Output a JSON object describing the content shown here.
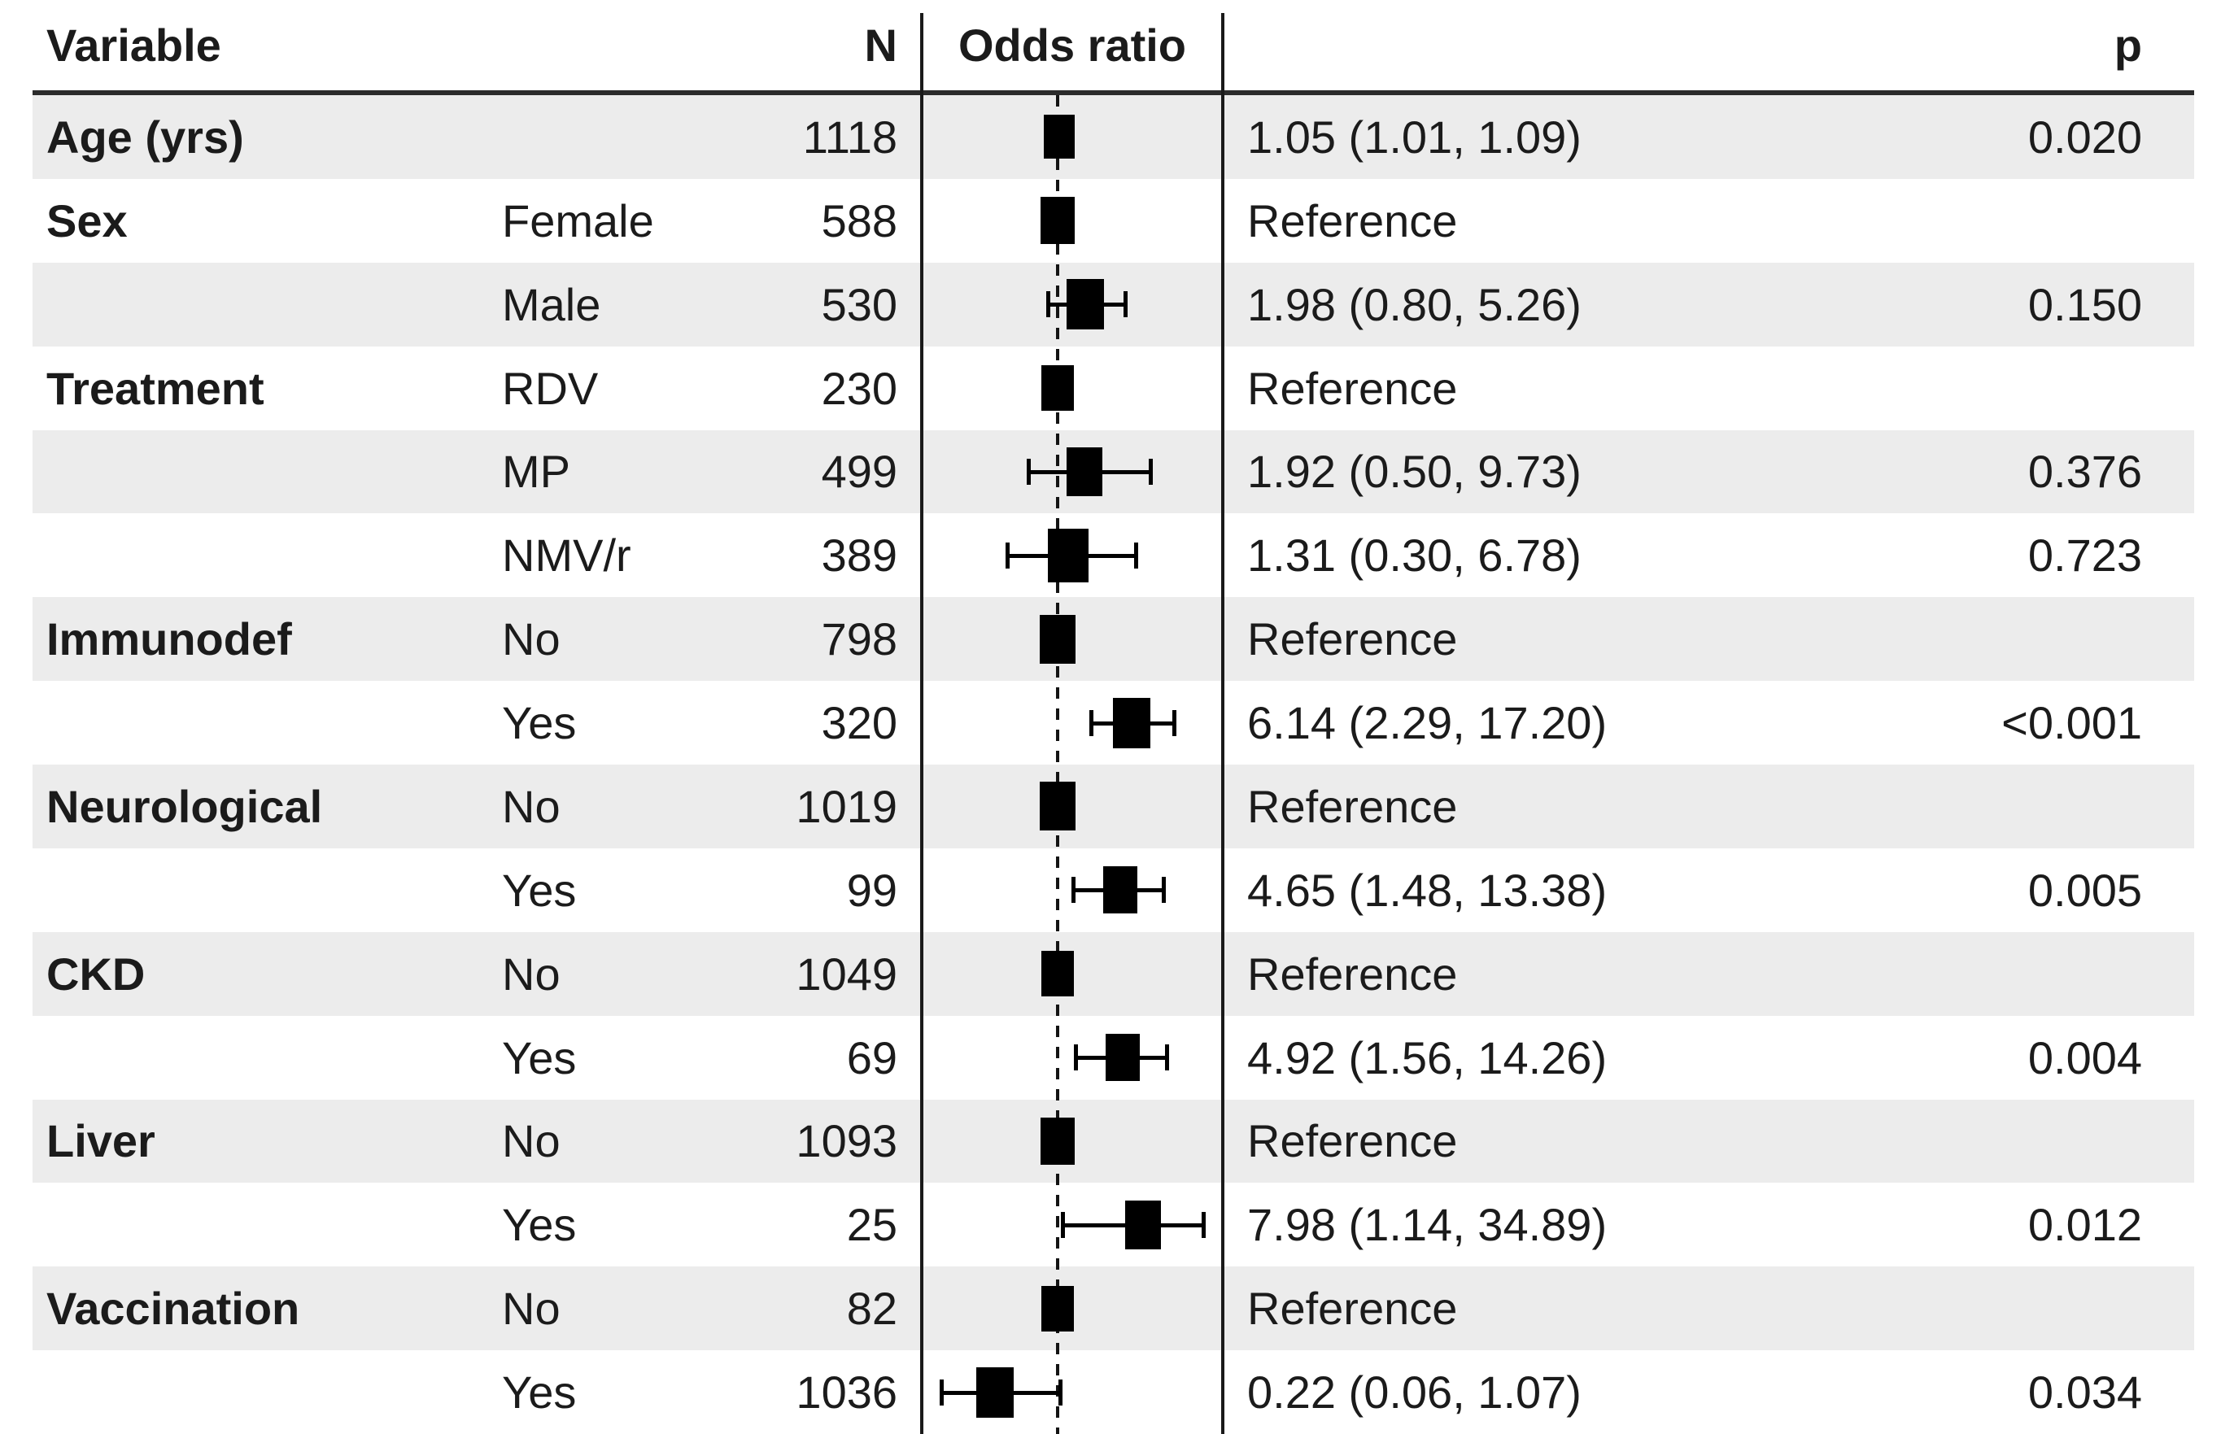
{
  "header": {
    "variable": "Variable",
    "n": "N",
    "odds_ratio": "Odds ratio",
    "p": "p"
  },
  "colors": {
    "stripe": "#ececec",
    "marker": "#000000",
    "text": "#1b1b1b",
    "divider_line": "#1a1a1a",
    "header_rule": "#2b2b2b"
  },
  "chart_data": {
    "type": "scatter",
    "subtype": "forest-plot",
    "title": "",
    "xlabel": "Odds ratio",
    "x_scale": "log",
    "x_range": [
      0.037,
      55.7
    ],
    "reference_value": 1,
    "reference_line_style": "dashed",
    "grid": false,
    "rows": [
      {
        "variable": "Age (yrs)",
        "subgroup": "",
        "n": 1118,
        "or": 1.05,
        "ci": [
          1.01,
          1.09
        ],
        "estimate": "1.05 (1.01, 1.09)",
        "p": "0.020",
        "box": 54
      },
      {
        "variable": "Sex",
        "subgroup": "Female",
        "n": 588,
        "or": 1.0,
        "ci": null,
        "estimate": "Reference",
        "p": "",
        "box": 58
      },
      {
        "variable": "",
        "subgroup": "Male",
        "n": 530,
        "or": 1.98,
        "ci": [
          0.8,
          5.26
        ],
        "estimate": "1.98 (0.80, 5.26)",
        "p": "0.150",
        "box": 62
      },
      {
        "variable": "Treatment",
        "subgroup": "RDV",
        "n": 230,
        "or": 1.0,
        "ci": null,
        "estimate": "Reference",
        "p": "",
        "box": 56
      },
      {
        "variable": "",
        "subgroup": "MP",
        "n": 499,
        "or": 1.92,
        "ci": [
          0.5,
          9.73
        ],
        "estimate": "1.92 (0.50, 9.73)",
        "p": "0.376",
        "box": 60
      },
      {
        "variable": "",
        "subgroup": "NMV/r",
        "n": 389,
        "or": 1.31,
        "ci": [
          0.3,
          6.78
        ],
        "estimate": "1.31 (0.30, 6.78)",
        "p": "0.723",
        "box": 66
      },
      {
        "variable": "Immunodef",
        "subgroup": "No",
        "n": 798,
        "or": 1.0,
        "ci": null,
        "estimate": "Reference",
        "p": "",
        "box": 60
      },
      {
        "variable": "",
        "subgroup": "Yes",
        "n": 320,
        "or": 6.14,
        "ci": [
          2.29,
          17.2
        ],
        "estimate": "6.14 (2.29, 17.20)",
        "p": "<0.001",
        "box": 62
      },
      {
        "variable": "Neurological",
        "subgroup": "No",
        "n": 1019,
        "or": 1.0,
        "ci": null,
        "estimate": "Reference",
        "p": "",
        "box": 60
      },
      {
        "variable": "",
        "subgroup": "Yes",
        "n": 99,
        "or": 4.65,
        "ci": [
          1.48,
          13.38
        ],
        "estimate": "4.65 (1.48, 13.38)",
        "p": "0.005",
        "box": 58
      },
      {
        "variable": "CKD",
        "subgroup": "No",
        "n": 1049,
        "or": 1.0,
        "ci": null,
        "estimate": "Reference",
        "p": "",
        "box": 56
      },
      {
        "variable": "",
        "subgroup": "Yes",
        "n": 69,
        "or": 4.92,
        "ci": [
          1.56,
          14.26
        ],
        "estimate": "4.92 (1.56, 14.26)",
        "p": "0.004",
        "box": 58
      },
      {
        "variable": "Liver",
        "subgroup": "No",
        "n": 1093,
        "or": 1.0,
        "ci": null,
        "estimate": "Reference",
        "p": "",
        "box": 58
      },
      {
        "variable": "",
        "subgroup": "Yes",
        "n": 25,
        "or": 7.98,
        "ci": [
          1.14,
          34.89
        ],
        "estimate": "7.98 (1.14, 34.89)",
        "p": "0.012",
        "box": 60
      },
      {
        "variable": "Vaccination",
        "subgroup": "No",
        "n": 82,
        "or": 1.0,
        "ci": null,
        "estimate": "Reference",
        "p": "",
        "box": 56
      },
      {
        "variable": "",
        "subgroup": "Yes",
        "n": 1036,
        "or": 0.22,
        "ci": [
          0.06,
          1.07
        ],
        "estimate": "0.22 (0.06, 1.07)",
        "p": "0.034",
        "box": 62
      }
    ]
  }
}
